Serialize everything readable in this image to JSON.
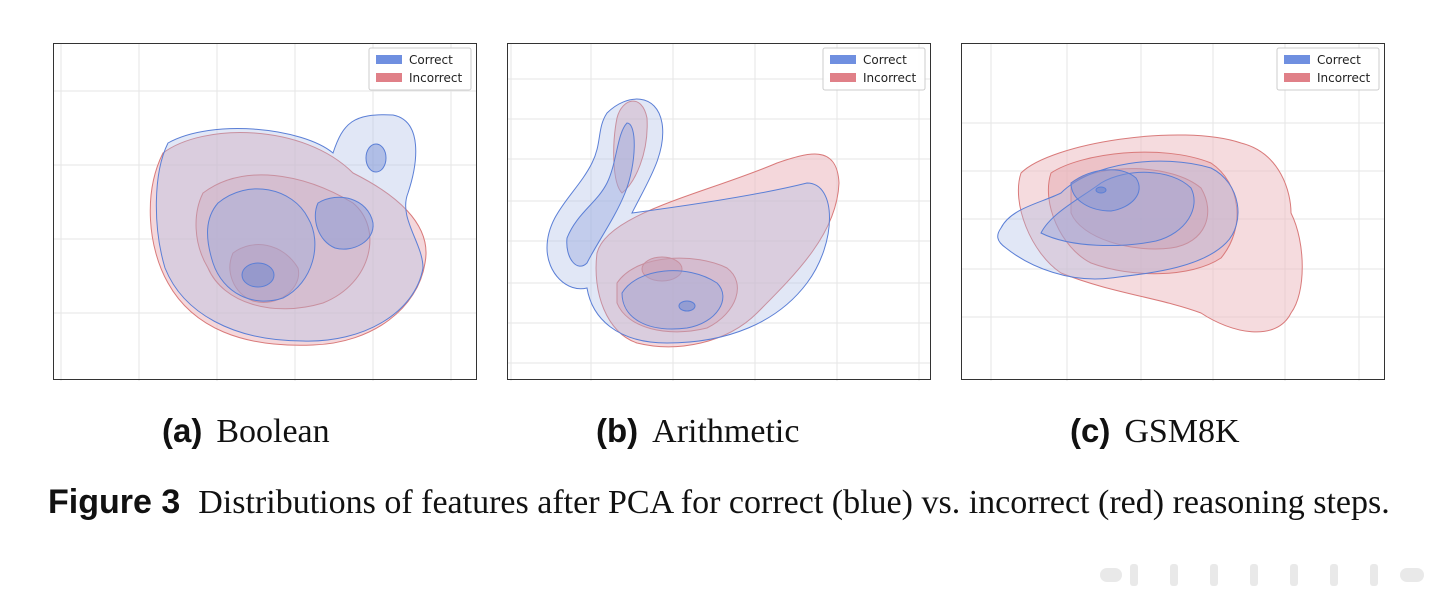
{
  "panels": [
    {
      "tag": "(a)",
      "name": "Boolean"
    },
    {
      "tag": "(b)",
      "name": "Arithmetic"
    },
    {
      "tag": "(c)",
      "name": "GSM8K"
    }
  ],
  "legend": {
    "correct": "Correct",
    "incorrect": "Incorrect"
  },
  "colors": {
    "correct": "#5b7fd6",
    "incorrect": "#e07a7a",
    "correct_fill": "#aab9e6",
    "incorrect_fill": "#ebb7bd"
  },
  "caption": {
    "label": "Figure 3",
    "text": "Distributions of features after PCA for correct (blue) vs. incorrect (red) reasoning steps."
  }
}
